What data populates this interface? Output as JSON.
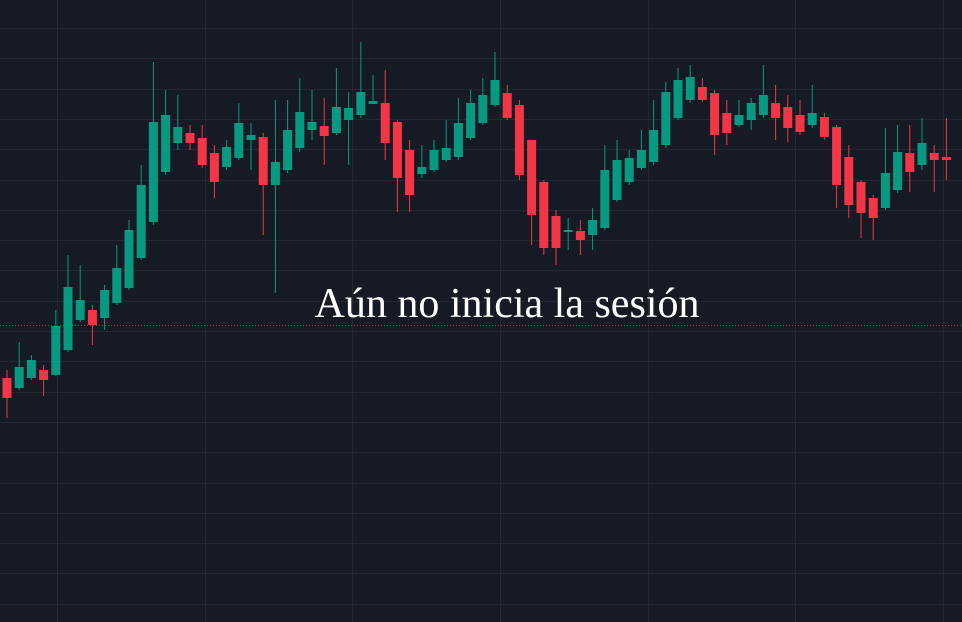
{
  "chart_data": {
    "type": "candlestick",
    "annotation": "Aún no inicia la sesión",
    "up_color": "#089981",
    "down_color": "#f23645",
    "ylim": [
      0,
      622
    ],
    "open": [
      244,
      234,
      244,
      252,
      247,
      272,
      302,
      312,
      304,
      319,
      334,
      364,
      400,
      450,
      479,
      489,
      484,
      469,
      455,
      464,
      482,
      485,
      437,
      452,
      474,
      492,
      496,
      489,
      502,
      507,
      518,
      519,
      500,
      472,
      448,
      452,
      462,
      465,
      484,
      499,
      517,
      529,
      517,
      482,
      440,
      406,
      390,
      391,
      387,
      394,
      422,
      440,
      454,
      460,
      477,
      504,
      522,
      535,
      529,
      509,
      497,
      502,
      507,
      519,
      515,
      507,
      497,
      505,
      495,
      465,
      440,
      424,
      414,
      432,
      469,
      457,
      469,
      465
    ],
    "high": [
      252,
      280,
      267,
      257,
      312,
      367,
      357,
      317,
      337,
      377,
      402,
      457,
      560,
      532,
      527,
      497,
      497,
      477,
      482,
      519,
      499,
      489,
      522,
      522,
      544,
      532,
      524,
      554,
      530,
      580,
      547,
      552,
      502,
      482,
      477,
      482,
      502,
      524,
      532,
      544,
      570,
      537,
      522,
      482,
      442,
      412,
      404,
      402,
      414,
      477,
      482,
      472,
      492,
      522,
      540,
      554,
      557,
      544,
      532,
      522,
      522,
      524,
      557,
      537,
      527,
      522,
      537,
      509,
      497,
      477,
      442,
      427,
      494,
      497,
      497,
      504,
      477,
      504
    ],
    "low": [
      204,
      232,
      242,
      226,
      246,
      270,
      300,
      277,
      292,
      317,
      332,
      362,
      397,
      447,
      472,
      472,
      454,
      424,
      452,
      462,
      452,
      387,
      329,
      449,
      470,
      482,
      457,
      487,
      457,
      504,
      518,
      462,
      410,
      410,
      444,
      450,
      460,
      462,
      482,
      497,
      515,
      502,
      442,
      377,
      367,
      357,
      372,
      367,
      372,
      392,
      420,
      437,
      452,
      457,
      474,
      502,
      519,
      520,
      467,
      477,
      495,
      492,
      504,
      482,
      480,
      487,
      494,
      482,
      414,
      404,
      384,
      382,
      412,
      429,
      430,
      452,
      430,
      442
    ],
    "close": [
      224,
      255,
      262,
      242,
      296,
      335,
      322,
      297,
      332,
      354,
      392,
      437,
      500,
      507,
      495,
      479,
      457,
      440,
      475,
      499,
      487,
      437,
      460,
      492,
      510,
      500,
      486,
      515,
      514,
      530,
      521,
      479,
      444,
      427,
      455,
      472,
      474,
      499,
      519,
      527,
      542,
      504,
      447,
      407,
      374,
      374,
      392,
      382,
      402,
      452,
      462,
      464,
      472,
      492,
      530,
      542,
      545,
      522,
      487,
      489,
      507,
      519,
      527,
      504,
      494,
      490,
      509,
      485,
      437,
      417,
      409,
      404,
      449,
      470,
      450,
      479,
      462,
      462
    ]
  }
}
